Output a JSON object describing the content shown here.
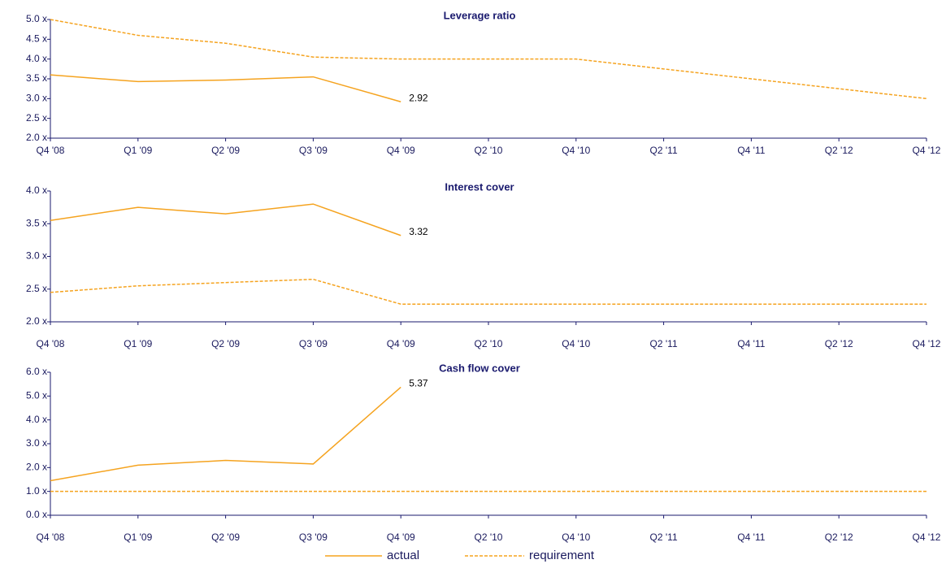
{
  "chart_data": [
    {
      "type": "line",
      "title": "Leverage ratio",
      "categories": [
        "Q4 '08",
        "Q1 '09",
        "Q2 '09",
        "Q3 '09",
        "Q4 '09",
        "Q2 '10",
        "Q4 '10",
        "Q2 '11",
        "Q4 '11",
        "Q2 '12",
        "Q4 '12"
      ],
      "series": [
        {
          "name": "actual",
          "color": "#f5a31f",
          "dashed": false,
          "values": [
            3.6,
            3.43,
            3.47,
            3.55,
            2.92,
            null,
            null,
            null,
            null,
            null,
            null
          ]
        },
        {
          "name": "requirement",
          "color": "#f5a31f",
          "dashed": true,
          "values": [
            5.0,
            4.6,
            4.4,
            4.05,
            4.0,
            4.0,
            4.0,
            3.75,
            3.5,
            3.25,
            3.0
          ]
        }
      ],
      "ylim": [
        2,
        5
      ],
      "yticks": [
        {
          "value": 2,
          "label": "2.0 x"
        },
        {
          "value": 2.5,
          "label": "2.5 x"
        },
        {
          "value": 3,
          "label": "3.0 x"
        },
        {
          "value": 3.5,
          "label": "3.5 x"
        },
        {
          "value": 4,
          "label": "4.0 x"
        },
        {
          "value": 4.5,
          "label": "4.5 x"
        },
        {
          "value": 5,
          "label": "5.0 x"
        }
      ]
    },
    {
      "type": "line",
      "title": "Interest cover",
      "categories": [
        "Q4 '08",
        "Q1 '09",
        "Q2 '09",
        "Q3 '09",
        "Q4 '09",
        "Q2 '10",
        "Q4 '10",
        "Q2 '11",
        "Q4 '11",
        "Q2 '12",
        "Q4 '12"
      ],
      "series": [
        {
          "name": "actual",
          "color": "#f5a31f",
          "dashed": false,
          "values": [
            3.55,
            3.75,
            3.65,
            3.8,
            3.32,
            null,
            null,
            null,
            null,
            null,
            null
          ]
        },
        {
          "name": "requirement",
          "color": "#f5a31f",
          "dashed": true,
          "values": [
            2.45,
            2.55,
            2.6,
            2.65,
            2.27,
            2.27,
            2.27,
            2.27,
            2.27,
            2.27,
            2.27
          ]
        }
      ],
      "ylim": [
        2,
        4
      ],
      "yticks": [
        {
          "value": 2,
          "label": "2.0 x"
        },
        {
          "value": 2.5,
          "label": "2.5 x"
        },
        {
          "value": 3,
          "label": "3.0 x"
        },
        {
          "value": 3.5,
          "label": "3.5 x"
        },
        {
          "value": 4,
          "label": "4.0 x"
        }
      ]
    },
    {
      "type": "line",
      "title": "Cash flow cover",
      "categories": [
        "Q4 '08",
        "Q1 '09",
        "Q2 '09",
        "Q3 '09",
        "Q4 '09",
        "Q2 '10",
        "Q4 '10",
        "Q2 '11",
        "Q4 '11",
        "Q2 '12",
        "Q4 '12"
      ],
      "series": [
        {
          "name": "actual",
          "color": "#f5a31f",
          "dashed": false,
          "values": [
            1.45,
            2.1,
            2.3,
            2.15,
            5.37,
            null,
            null,
            null,
            null,
            null,
            null
          ]
        },
        {
          "name": "requirement",
          "color": "#f5a31f",
          "dashed": true,
          "values": [
            1.0,
            1.0,
            1.0,
            1.0,
            1.0,
            1.0,
            1.0,
            1.0,
            1.0,
            1.0,
            1.0
          ]
        }
      ],
      "ylim": [
        0,
        6
      ],
      "yticks": [
        {
          "value": 0,
          "label": "0.0 x"
        },
        {
          "value": 1,
          "label": "1.0 x"
        },
        {
          "value": 2,
          "label": "2.0 x"
        },
        {
          "value": 3,
          "label": "3.0 x"
        },
        {
          "value": 4,
          "label": "4.0 x"
        },
        {
          "value": 5,
          "label": "5.0 x"
        },
        {
          "value": 6,
          "label": "6.0 x"
        }
      ]
    }
  ]
}
